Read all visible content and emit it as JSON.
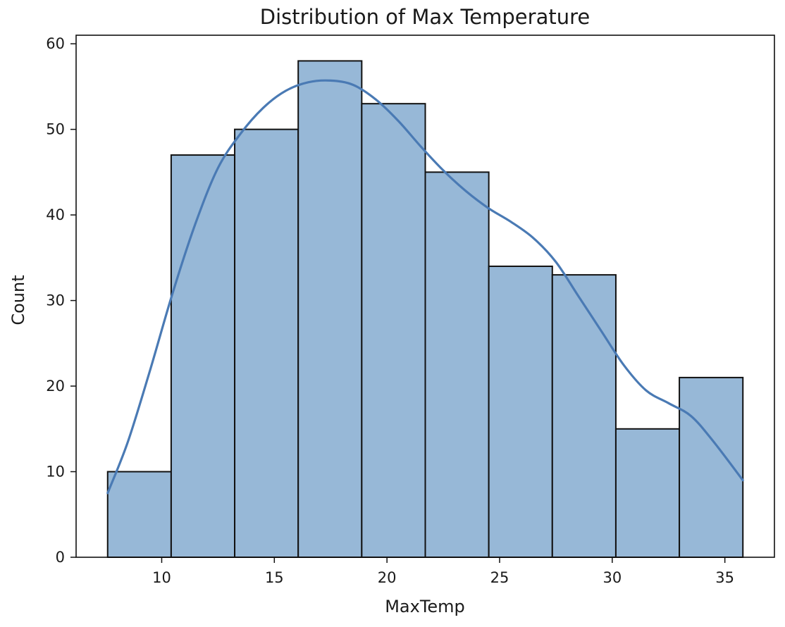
{
  "chart_data": {
    "type": "bar",
    "subtype": "histogram",
    "title": "Distribution of Max Temperature",
    "xlabel": "MaxTemp",
    "ylabel": "Count",
    "bins": [
      {
        "start": 7.6,
        "end": 10.42,
        "count": 10
      },
      {
        "start": 10.42,
        "end": 13.24,
        "count": 47
      },
      {
        "start": 13.24,
        "end": 16.06,
        "count": 50
      },
      {
        "start": 16.06,
        "end": 18.88,
        "count": 58
      },
      {
        "start": 18.88,
        "end": 21.7,
        "count": 53
      },
      {
        "start": 21.7,
        "end": 24.52,
        "count": 45
      },
      {
        "start": 24.52,
        "end": 27.34,
        "count": 34
      },
      {
        "start": 27.34,
        "end": 30.16,
        "count": 33
      },
      {
        "start": 30.16,
        "end": 32.98,
        "count": 15
      },
      {
        "start": 32.98,
        "end": 35.8,
        "count": 21
      }
    ],
    "kde": {
      "x": [
        7.6,
        8.5,
        9.5,
        10.5,
        11.5,
        12.5,
        13.5,
        14.5,
        15.5,
        16.5,
        17.5,
        18.5,
        19.5,
        20.5,
        21.5,
        22.5,
        23.5,
        24.5,
        25.5,
        26.5,
        27.5,
        28.5,
        29.5,
        30.5,
        31.5,
        32.5,
        33.5,
        34.5,
        35.8
      ],
      "y": [
        7.5,
        13.5,
        22,
        31,
        39,
        45.5,
        49.5,
        52.5,
        54.5,
        55.5,
        55.7,
        55.2,
        53.5,
        51,
        48,
        45.2,
        42.8,
        40.8,
        39.2,
        37.3,
        34.5,
        30.5,
        26.5,
        22.5,
        19.5,
        18,
        16.5,
        13.5,
        9
      ]
    },
    "xlim": [
      6.2,
      37.2
    ],
    "ylim": [
      0,
      61
    ],
    "xticks": [
      10,
      15,
      20,
      25,
      30,
      35
    ],
    "yticks": [
      0,
      10,
      20,
      30,
      40,
      50,
      60
    ],
    "grid": false,
    "colors": {
      "bar_fill": "#97b8d7",
      "bar_edge": "#111111",
      "kde_line": "#4a7ab4"
    }
  }
}
